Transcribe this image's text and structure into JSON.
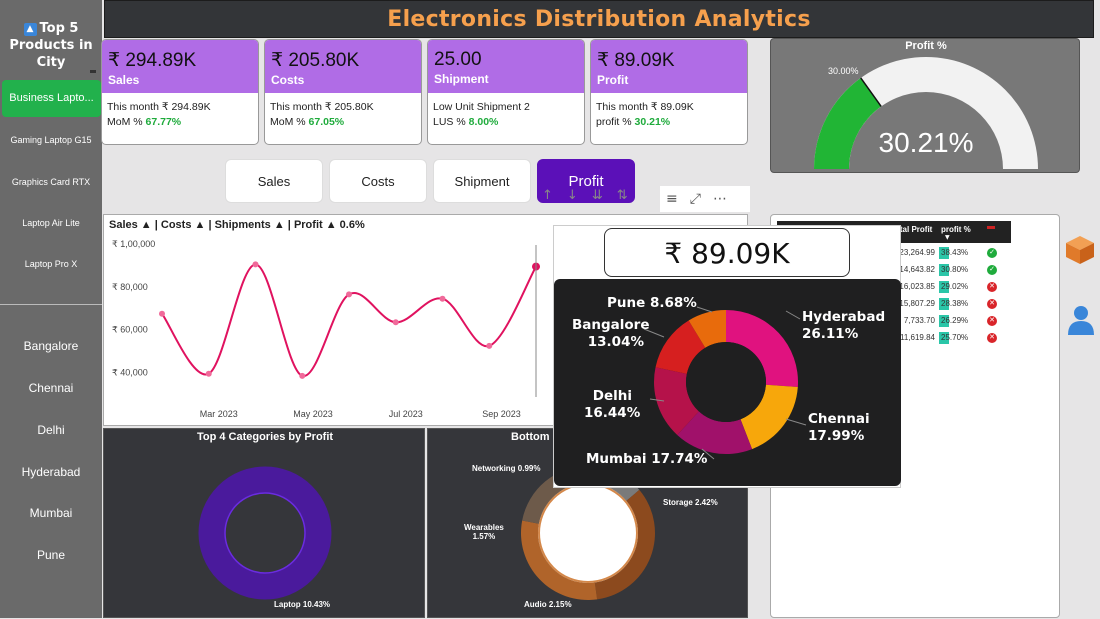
{
  "title": "Electronics Distribution Analytics",
  "sidebar": {
    "title_line1": "Top 5",
    "title_line2": "Products in",
    "title_line3": "City",
    "products": [
      "Business Lapto...",
      "Gaming Laptop G15",
      "Graphics Card RTX",
      "Laptop Air Lite",
      "Laptop Pro X"
    ],
    "cities": [
      "Bangalore",
      "Chennai",
      "Delhi",
      "Hyderabad",
      "Mumbai",
      "Pune"
    ]
  },
  "kpis": [
    {
      "value": "₹ 294.89K",
      "label": "Sales",
      "line1_prefix": "This month ",
      "line1_value": "₹ 294.89K",
      "line2_prefix": "MoM % ",
      "line2_value": "67.77%"
    },
    {
      "value": "₹ 205.80K",
      "label": "Costs",
      "line1_prefix": "This month ",
      "line1_value": "₹ 205.80K",
      "line2_prefix": "MoM % ",
      "line2_value": "67.05%"
    },
    {
      "value": "25.00",
      "label": "Shipment",
      "line1_prefix": "Low Unit Shipment ",
      "line1_value": "2",
      "line2_prefix": "LUS % ",
      "line2_value": "8.00%"
    },
    {
      "value": "₹ 89.09K",
      "label": "Profit",
      "line1_prefix": "This month ",
      "line1_value": "₹ 89.09K",
      "line2_prefix": "profit % ",
      "line2_value": "30.21%"
    }
  ],
  "buttons": [
    "Sales",
    "Costs",
    "Shipment",
    "Profit"
  ],
  "gauge": {
    "title": "Profit %",
    "value": "30.21%",
    "marker": "30.00%",
    "fill_fraction": 0.3021
  },
  "line_chart": {
    "title": "Sales ▲ | Costs ▲ | Shipments ▲ | Profit ▲ 0.6%"
  },
  "chart_data": [
    {
      "type": "line",
      "title": "Sales ▲ | Costs ▲ | Shipments ▲ | Profit ▲ 0.6%",
      "y_ticks": [
        "₹ 1,00,000",
        "₹ 80,000",
        "₹ 60,000",
        "₹ 40,000"
      ],
      "ylim": [
        30000,
        100000
      ],
      "x_ticks": [
        "Mar 2023",
        "May 2023",
        "Jul 2023",
        "Sep 2023"
      ],
      "series": [
        {
          "values": [
            67000,
            39000,
            90000,
            38000,
            76000,
            63000,
            74000,
            52000,
            89000
          ]
        }
      ]
    },
    {
      "type": "pie",
      "title": "",
      "labels": [
        "Hyderabad",
        "Chennai",
        "Mumbai",
        "Delhi",
        "Bangalore",
        "Pune"
      ],
      "values": [
        26.11,
        17.99,
        17.74,
        16.44,
        13.04,
        8.68
      ],
      "label_text": [
        "Hyderabad",
        "Chennai",
        "Mumbai 17.74%",
        "Delhi",
        "Bangalore",
        "Pune 8.68%"
      ],
      "pct_text": [
        "26.11%",
        "17.99%",
        "",
        "16.44%",
        "13.04%",
        ""
      ],
      "colors": [
        "#e0127f",
        "#f7a70b",
        "#a0116a",
        "#b5124a",
        "#d61f1f",
        "#e86b0c"
      ]
    },
    {
      "type": "pie",
      "title": "Top 4 Categories by Profit",
      "labels": [
        "Laptop"
      ],
      "label_text": [
        "Laptop 10.43%"
      ],
      "values": [
        10.43
      ],
      "colors": [
        "#4a1a9c"
      ]
    },
    {
      "type": "pie",
      "title": "Bottom",
      "labels": [
        "Networking",
        "Storage",
        "Audio",
        "Wearables"
      ],
      "label_text": [
        "Networking 0.99%",
        "Storage 2.42%",
        "Audio 2.15%",
        "Wearables"
      ],
      "label_pct": [
        "",
        "",
        "",
        "1.57%"
      ],
      "values": [
        0.99,
        2.42,
        2.15,
        1.57
      ],
      "colors": [
        "#7a7a7a",
        "#8c4a1e",
        "#b0642a",
        "#6d5a4a"
      ]
    }
  ],
  "popup": {
    "value": "₹ 89.09K"
  },
  "table": {
    "headers": [
      "",
      "otal Profit",
      "profit %",
      ""
    ],
    "rows": [
      {
        "profit": "23,264.99",
        "pct": "38.43%",
        "ok": true
      },
      {
        "profit": "14,643.82",
        "pct": "30.80%",
        "ok": true
      },
      {
        "profit": "16,023.85",
        "pct": "29.02%",
        "ok": false
      },
      {
        "profit": "15,807.29",
        "pct": "28.38%",
        "ok": false
      },
      {
        "profit": "7,733.70",
        "pct": "26.29%",
        "ok": false
      },
      {
        "profit": "11,619.84",
        "pct": "25.70%",
        "ok": false
      }
    ]
  }
}
